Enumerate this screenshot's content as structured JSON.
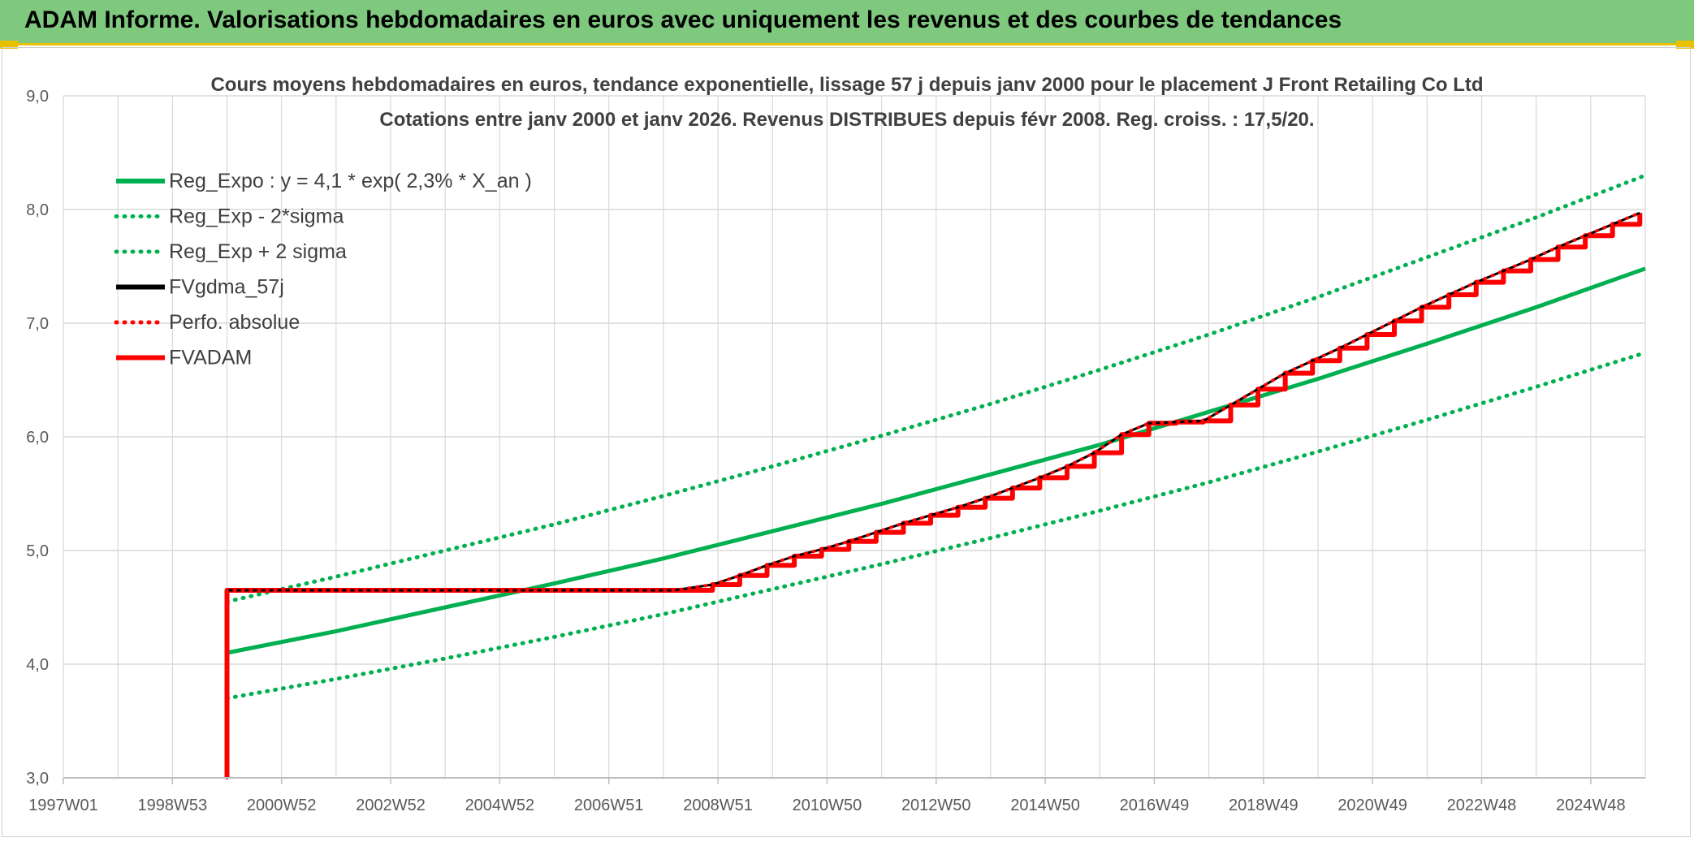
{
  "banner": {
    "title": "ADAM Informe. Valorisations hebdomadaires en euros avec uniquement les revenus et des courbes de tendances"
  },
  "colors": {
    "banner_bg": "#7fc97f",
    "accent_yellow": "#e8c000",
    "green": "#00b050",
    "black": "#000000",
    "red": "#ff0000",
    "grid": "#d9d9d9"
  },
  "chart_data": {
    "type": "line",
    "title": "Cours moyens hebdomadaires en euros, tendance exponentielle, lissage 57 j depuis janv 2000 pour le placement J Front Retailing Co Ltd",
    "subtitle": "Cotations entre janv 2000 et janv 2026. Revenus DISTRIBUES depuis févr 2008. Reg. croiss. : 17,5/20.",
    "xlabel": "",
    "ylabel": "",
    "xlim": [
      1997.0,
      2026.0
    ],
    "ylim": [
      3.0,
      9.0
    ],
    "x_ticks": [
      {
        "label": "1997W01",
        "x": 1997.0
      },
      {
        "label": "1998W53",
        "x": 1999.0
      },
      {
        "label": "2000W52",
        "x": 2001.0
      },
      {
        "label": "2002W52",
        "x": 2003.0
      },
      {
        "label": "2004W52",
        "x": 2005.0
      },
      {
        "label": "2006W51",
        "x": 2007.0
      },
      {
        "label": "2008W51",
        "x": 2009.0
      },
      {
        "label": "2010W50",
        "x": 2011.0
      },
      {
        "label": "2012W50",
        "x": 2013.0
      },
      {
        "label": "2014W50",
        "x": 2015.0
      },
      {
        "label": "2016W49",
        "x": 2017.0
      },
      {
        "label": "2018W49",
        "x": 2019.0
      },
      {
        "label": "2020W49",
        "x": 2021.0
      },
      {
        "label": "2022W48",
        "x": 2023.0
      },
      {
        "label": "2024W48",
        "x": 2025.0
      }
    ],
    "y_ticks": [
      {
        "label": "3,0",
        "v": 3.0
      },
      {
        "label": "4,0",
        "v": 4.0
      },
      {
        "label": "5,0",
        "v": 5.0
      },
      {
        "label": "6,0",
        "v": 6.0
      },
      {
        "label": "7,0",
        "v": 7.0
      },
      {
        "label": "8,0",
        "v": 8.0
      },
      {
        "label": "9,0",
        "v": 9.0
      }
    ],
    "grid": true,
    "legend_position": "top-left",
    "series": [
      {
        "name": "Reg_Expo : y = 4,1 * exp( 2,3% *  X_an )",
        "color": "#00b050",
        "style": "solid",
        "width": 5,
        "x": [
          2000.0,
          2002.0,
          2004.0,
          2006.0,
          2008.0,
          2010.0,
          2012.0,
          2014.0,
          2016.0,
          2018.0,
          2020.0,
          2022.0,
          2024.0,
          2026.0
        ],
        "y": [
          4.1,
          4.29,
          4.5,
          4.71,
          4.93,
          5.17,
          5.41,
          5.67,
          5.93,
          6.22,
          6.51,
          6.82,
          7.14,
          7.48
        ]
      },
      {
        "name": "Reg_Exp - 2*sigma",
        "color": "#00b050",
        "style": "dotted",
        "width": 5,
        "x": [
          2000.0,
          2002.0,
          2004.0,
          2006.0,
          2008.0,
          2010.0,
          2012.0,
          2014.0,
          2016.0,
          2018.0,
          2020.0,
          2022.0,
          2024.0,
          2026.0
        ],
        "y": [
          3.7,
          3.87,
          4.05,
          4.24,
          4.44,
          4.66,
          4.88,
          5.11,
          5.35,
          5.6,
          5.87,
          6.15,
          6.44,
          6.74
        ]
      },
      {
        "name": "Reg_Exp + 2 sigma",
        "color": "#00b050",
        "style": "dotted",
        "width": 5,
        "x": [
          2000.0,
          2002.0,
          2004.0,
          2006.0,
          2008.0,
          2010.0,
          2012.0,
          2014.0,
          2016.0,
          2018.0,
          2020.0,
          2022.0,
          2024.0,
          2026.0
        ],
        "y": [
          4.55,
          4.77,
          5.0,
          5.23,
          5.48,
          5.74,
          6.01,
          6.29,
          6.59,
          6.9,
          7.23,
          7.58,
          7.93,
          8.3
        ]
      },
      {
        "name": "FVgdma_57j",
        "color": "#000000",
        "style": "solid",
        "width": 3,
        "x": [
          2000.0,
          2008.2,
          2008.9,
          2009.4,
          2009.9,
          2010.4,
          2010.9,
          2011.4,
          2011.9,
          2012.4,
          2012.9,
          2013.4,
          2013.9,
          2014.4,
          2014.9,
          2015.4,
          2015.9,
          2016.4,
          2016.9,
          2017.4,
          2017.9,
          2018.4,
          2018.9,
          2019.4,
          2019.9,
          2020.4,
          2020.9,
          2021.4,
          2021.9,
          2022.4,
          2022.9,
          2023.4,
          2023.9,
          2024.4,
          2024.9,
          2025.4,
          2025.9
        ],
        "y": [
          4.65,
          4.65,
          4.7,
          4.78,
          4.87,
          4.95,
          5.01,
          5.08,
          5.16,
          5.24,
          5.31,
          5.38,
          5.46,
          5.55,
          5.64,
          5.74,
          5.86,
          6.02,
          6.12,
          6.13,
          6.14,
          6.28,
          6.42,
          6.56,
          6.67,
          6.78,
          6.9,
          7.02,
          7.14,
          7.25,
          7.36,
          7.46,
          7.56,
          7.67,
          7.77,
          7.87,
          7.97
        ]
      },
      {
        "name": "Perfo. absolue",
        "color": "#ff0000",
        "style": "dotted",
        "width": 4,
        "x": [
          2000.0,
          2000.0,
          2008.2,
          2008.9,
          2009.4,
          2009.9,
          2010.4,
          2010.9,
          2011.4,
          2011.9,
          2012.4,
          2012.9,
          2013.4,
          2013.9,
          2014.4,
          2014.9,
          2015.4,
          2015.9,
          2016.4,
          2016.9,
          2017.4,
          2017.9,
          2018.4,
          2018.9,
          2019.4,
          2019.9,
          2020.4,
          2020.9,
          2021.4,
          2021.9,
          2022.4,
          2022.9,
          2023.4,
          2023.9,
          2024.4,
          2024.9,
          2025.4,
          2025.9
        ],
        "y": [
          3.0,
          4.65,
          4.65,
          4.7,
          4.78,
          4.87,
          4.95,
          5.01,
          5.08,
          5.16,
          5.24,
          5.31,
          5.38,
          5.46,
          5.55,
          5.64,
          5.74,
          5.86,
          6.02,
          6.12,
          6.13,
          6.14,
          6.28,
          6.42,
          6.56,
          6.67,
          6.78,
          6.9,
          7.02,
          7.14,
          7.25,
          7.36,
          7.46,
          7.56,
          7.67,
          7.77,
          7.87,
          7.97
        ]
      },
      {
        "name": "FVADAM",
        "color": "#ff0000",
        "style": "stepped",
        "width": 6,
        "x": [
          2000.0,
          2000.0,
          2008.2,
          2008.9,
          2009.4,
          2009.9,
          2010.4,
          2010.9,
          2011.4,
          2011.9,
          2012.4,
          2012.9,
          2013.4,
          2013.9,
          2014.4,
          2014.9,
          2015.4,
          2015.9,
          2016.4,
          2016.9,
          2017.4,
          2017.9,
          2018.4,
          2018.9,
          2019.4,
          2019.9,
          2020.4,
          2020.9,
          2021.4,
          2021.9,
          2022.4,
          2022.9,
          2023.4,
          2023.9,
          2024.4,
          2024.9,
          2025.4,
          2025.9
        ],
        "y": [
          3.0,
          4.65,
          4.65,
          4.7,
          4.78,
          4.87,
          4.95,
          5.01,
          5.08,
          5.16,
          5.24,
          5.31,
          5.38,
          5.46,
          5.55,
          5.64,
          5.74,
          5.86,
          6.02,
          6.12,
          6.13,
          6.14,
          6.28,
          6.42,
          6.56,
          6.67,
          6.78,
          6.9,
          7.02,
          7.14,
          7.25,
          7.36,
          7.46,
          7.56,
          7.67,
          7.77,
          7.87,
          7.97
        ]
      }
    ]
  }
}
